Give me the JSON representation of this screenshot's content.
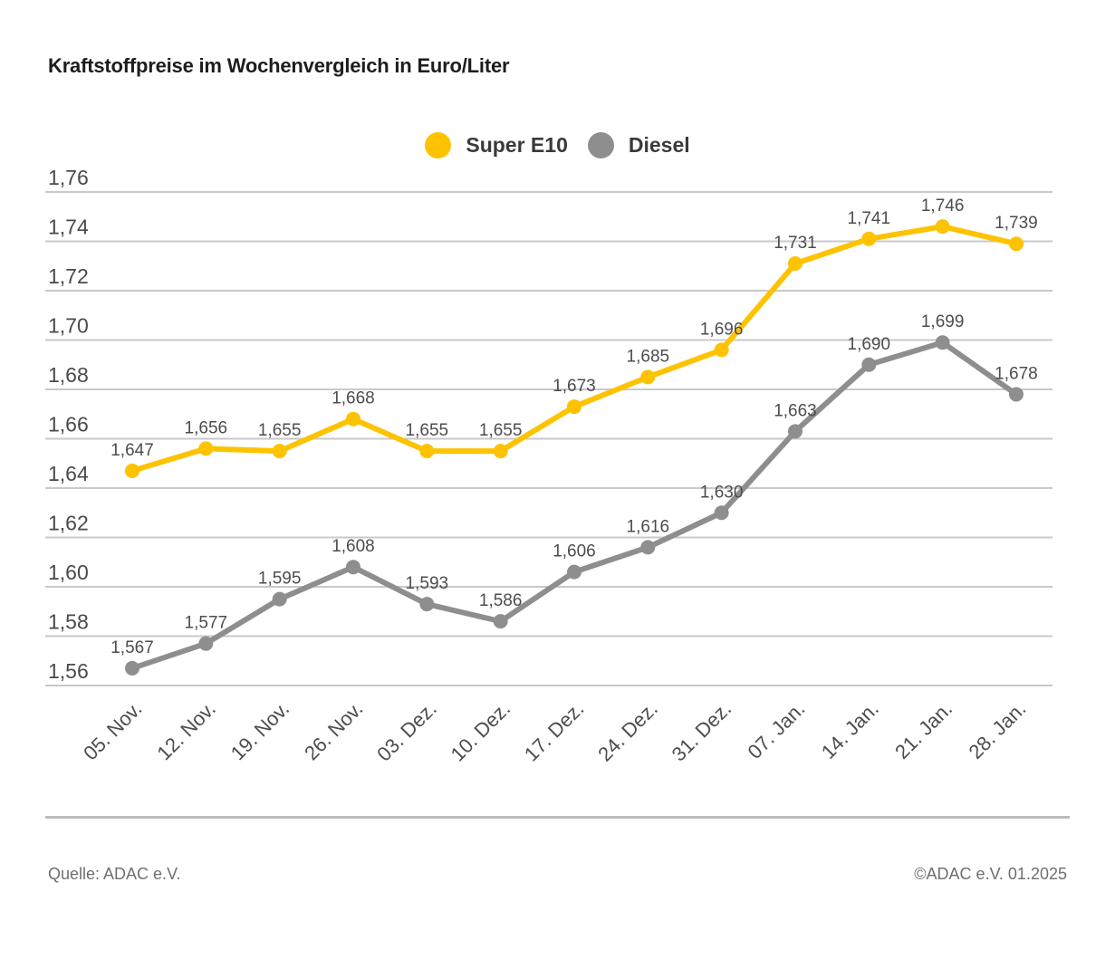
{
  "title": "Kraftstoffpreise im Wochenvergleich in Euro/Liter",
  "legend": {
    "items": [
      {
        "label": "Super E10",
        "color": "#FDC300"
      },
      {
        "label": "Diesel",
        "color": "#8E8E8E"
      }
    ]
  },
  "chart_data": {
    "type": "line",
    "title": "Kraftstoffpreise im Wochenvergleich in Euro/Liter",
    "categories": [
      "05. Nov.",
      "12. Nov.",
      "19. Nov.",
      "26. Nov.",
      "03. Dez.",
      "10. Dez.",
      "17. Dez.",
      "24. Dez.",
      "31. Dez.",
      "07. Jan.",
      "14. Jan.",
      "21. Jan.",
      "28. Jan."
    ],
    "series": [
      {
        "name": "Super E10",
        "color": "#FDC300",
        "values": [
          1.647,
          1.656,
          1.655,
          1.668,
          1.655,
          1.655,
          1.673,
          1.685,
          1.696,
          1.731,
          1.741,
          1.746,
          1.739
        ]
      },
      {
        "name": "Diesel",
        "color": "#8E8E8E",
        "values": [
          1.567,
          1.577,
          1.595,
          1.608,
          1.593,
          1.586,
          1.606,
          1.616,
          1.63,
          1.663,
          1.69,
          1.699,
          1.678
        ]
      }
    ],
    "xlabel": "",
    "ylabel": "",
    "ylim": [
      1.56,
      1.76
    ],
    "y_ticks": [
      "1,76",
      "1,74",
      "1,72",
      "1,70",
      "1,68",
      "1,66",
      "1,64",
      "1,62",
      "1,60",
      "1,58",
      "1,56"
    ],
    "grid": true,
    "legend_position": "top",
    "point_labels": true,
    "decimal_separator": ","
  },
  "footer": {
    "source": "Quelle: ADAC e.V.",
    "copyright": "©ADAC e.V. 01.2025"
  }
}
